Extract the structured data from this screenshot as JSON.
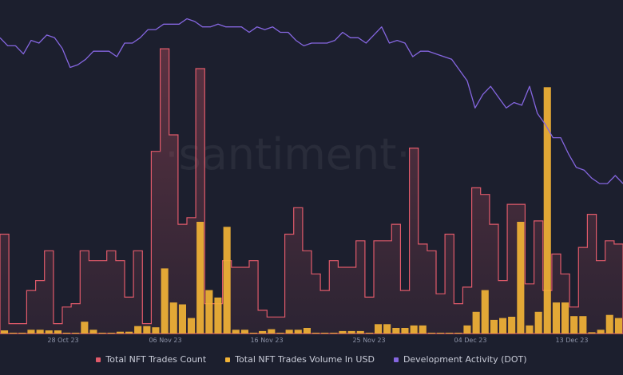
{
  "watermark": "·santiment·",
  "colors": {
    "background": "#1c1f2e",
    "trades_count": "#e05a6a",
    "volume_usd": "#f2b336",
    "dev_activity": "#8566e0"
  },
  "chart_data": {
    "type": "bar",
    "x_tick_labels": [
      "28 Oct 23",
      "06 Nov 23",
      "16 Nov 23",
      "25 Nov 23",
      "04 Dec 23",
      "13 Dec 23"
    ],
    "date_range": [
      "2023-10-17",
      "2023-12-23"
    ],
    "series": [
      {
        "name": "Total NFT Trades Count",
        "color": "#e05a6a",
        "kind": "step-area",
        "values": [
          3,
          0.3,
          0.3,
          1.3,
          1.6,
          2.5,
          0.3,
          0.8,
          0.9,
          2.5,
          2.2,
          2.2,
          2.5,
          2.2,
          1.1,
          2.5,
          0.3,
          5.5,
          8.6,
          6,
          3.3,
          3.5,
          8,
          0.9,
          0.9,
          2.2,
          2,
          2,
          2.2,
          0.7,
          0.5,
          0.5,
          3,
          3.8,
          2.5,
          1.8,
          1.3,
          2.2,
          2,
          2,
          2.8,
          1.1,
          2.8,
          2.8,
          3.3,
          1.3,
          5.6,
          2.7,
          2.5,
          1.2,
          3,
          0.9,
          1.4,
          4.4,
          4.2,
          3.3,
          1.6,
          3.9,
          3.9,
          1.5,
          3.4,
          1.3,
          2.4,
          1.8,
          0.8,
          2.6,
          3.6,
          2.2,
          2.8,
          2.7
        ]
      },
      {
        "name": "Total NFT Trades Volume In USD",
        "color": "#f2b336",
        "kind": "bar",
        "values": [
          0.05,
          0.01,
          0.01,
          0.06,
          0.06,
          0.05,
          0.05,
          0.01,
          0.01,
          0.19,
          0.06,
          0.01,
          0.01,
          0.03,
          0.03,
          0.12,
          0.12,
          0.1,
          1.05,
          0.5,
          0.47,
          0.25,
          1.8,
          0.7,
          0.58,
          1.72,
          0.06,
          0.06,
          0.01,
          0.04,
          0.07,
          0.01,
          0.06,
          0.06,
          0.09,
          0.01,
          0.01,
          0.01,
          0.04,
          0.04,
          0.04,
          0.01,
          0.15,
          0.15,
          0.09,
          0.09,
          0.13,
          0.13,
          0.01,
          0.01,
          0.01,
          0.01,
          0.13,
          0.35,
          0.7,
          0.22,
          0.25,
          0.27,
          1.8,
          0.13,
          0.35,
          3.97,
          0.5,
          0.5,
          0.28,
          0.28,
          0.02,
          0.06,
          0.3,
          0.25
        ]
      },
      {
        "name": "Development Activity (DOT)",
        "color": "#8566e0",
        "kind": "line",
        "values": [
          104,
          101,
          101,
          98,
          103,
          102,
          105,
          104,
          100,
          93,
          94,
          96,
          99,
          99,
          99,
          97,
          102,
          102,
          104,
          107,
          107,
          109,
          109,
          109,
          111,
          110,
          108,
          108,
          109,
          108,
          108,
          108,
          106,
          108,
          107,
          108,
          106,
          106,
          103,
          101,
          102,
          102,
          102,
          103,
          106,
          104,
          104,
          102,
          105,
          108,
          102,
          103,
          102,
          97,
          99,
          99,
          98,
          97,
          96,
          92,
          88,
          78,
          83,
          86,
          82,
          78,
          80,
          79,
          86,
          76,
          72,
          67,
          67,
          61,
          56,
          55,
          52,
          50,
          50,
          53,
          50
        ]
      }
    ]
  },
  "legend": {
    "trades_count": "Total NFT Trades Count",
    "volume_usd": "Total NFT Trades Volume In USD",
    "dev_activity": "Development Activity (DOT)"
  }
}
